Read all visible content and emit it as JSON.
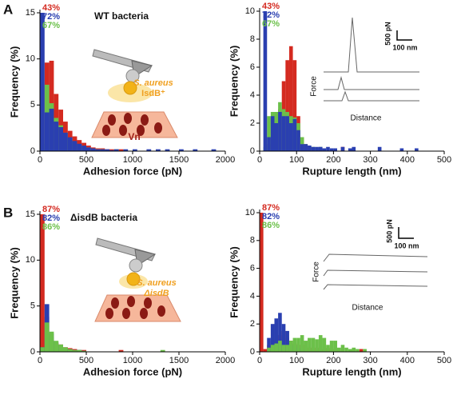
{
  "chart_data": [
    {
      "type": "histogram",
      "panel": "A",
      "title": "WT bacteria",
      "xlabel": "Adhesion force (pN)",
      "ylabel": "Frequency (%)",
      "bins": [
        0,
        50,
        100,
        150,
        200,
        250,
        300,
        350,
        400,
        450,
        500,
        550,
        600,
        650,
        700,
        750,
        800,
        850,
        900,
        950,
        1000,
        1050,
        1100,
        1150,
        1200,
        1250,
        1300,
        1350,
        1400,
        1450,
        1500,
        1550,
        1600,
        1650,
        1700,
        1750,
        1800,
        1850,
        1900,
        1950,
        2000
      ],
      "series": [
        {
          "name": "43%",
          "color": "#d42a20",
          "values": [
            0.3,
            9.6,
            9.8,
            6.2,
            4.5,
            3.2,
            2.2,
            1.6,
            1.2,
            0.9,
            0.6,
            0.4,
            0.3,
            0.3,
            0.2,
            0.2,
            0,
            0.2,
            0,
            0,
            0,
            0,
            0,
            0,
            0,
            0,
            0,
            0,
            0,
            0,
            0,
            0,
            0,
            0,
            0,
            0,
            0,
            0,
            0,
            0
          ]
        },
        {
          "name": "67%",
          "color": "#6cc04a",
          "values": [
            0.8,
            7.2,
            5.2,
            3.6,
            2.8,
            2,
            1.4,
            1,
            0.7,
            0.5,
            0.4,
            0.3,
            0.2,
            0.2,
            0.1,
            0,
            0.2,
            0,
            0,
            0,
            0,
            0,
            0,
            0,
            0,
            0,
            0,
            0,
            0,
            0,
            0,
            0,
            0,
            0,
            0,
            0,
            0,
            0,
            0,
            0
          ]
        },
        {
          "name": "72%",
          "color": "#2a3fb0",
          "values": [
            15,
            4.2,
            4.6,
            3.2,
            2.6,
            2,
            1.5,
            1.1,
            0.8,
            0.6,
            0.4,
            0.3,
            0.2,
            0.2,
            0.2,
            0.1,
            0.2,
            0,
            0.2,
            0,
            0.2,
            0,
            0,
            0.2,
            0,
            0.2,
            0,
            0.2,
            0,
            0,
            0.2,
            0,
            0,
            0.2,
            0,
            0,
            0,
            0.2,
            0,
            0
          ]
        }
      ],
      "legend_order": [
        0,
        2,
        1
      ],
      "xlim": [
        0,
        2000
      ],
      "xticks": [
        0,
        500,
        1000,
        1500,
        2000
      ],
      "ylim": [
        0,
        15
      ],
      "yticks": [
        0,
        5,
        10,
        15
      ],
      "annotations": [
        "S. aureus",
        "IsdB⁺",
        "Vn"
      ]
    },
    {
      "type": "histogram",
      "xlabel": "Rupture length (nm)",
      "ylabel": "Frequency (%)",
      "bins": [
        0,
        10,
        20,
        30,
        40,
        50,
        60,
        70,
        80,
        90,
        100,
        110,
        120,
        130,
        140,
        150,
        160,
        170,
        180,
        190,
        200,
        210,
        220,
        230,
        240,
        250,
        260,
        270,
        280,
        290,
        300,
        310,
        320,
        330,
        340,
        350,
        360,
        370,
        380,
        390,
        400,
        410,
        420,
        430,
        440,
        450
      ],
      "series": [
        {
          "name": "43%",
          "color": "#d42a20",
          "values": [
            0,
            0,
            0.5,
            1,
            2,
            3,
            5,
            6.5,
            7.5,
            6.5,
            2.5,
            1,
            0.5,
            0.3,
            0,
            0,
            0,
            0,
            0,
            0,
            0,
            0,
            0.3,
            0,
            0,
            0,
            0,
            0,
            0,
            0,
            0,
            0,
            0,
            0,
            0,
            0,
            0,
            0,
            0,
            0,
            0,
            0,
            0,
            0,
            0
          ]
        },
        {
          "name": "67%",
          "color": "#6cc04a",
          "values": [
            0,
            0.3,
            2.5,
            2.8,
            2.8,
            3.5,
            3,
            2.8,
            2.5,
            2.4,
            2,
            1,
            0.5,
            0.3,
            0.3,
            0.2,
            0.3,
            0,
            0,
            0,
            0,
            0,
            0,
            0,
            0,
            0,
            0,
            0,
            0,
            0,
            0,
            0,
            0,
            0,
            0,
            0,
            0,
            0,
            0,
            0,
            0,
            0,
            0,
            0,
            0
          ]
        },
        {
          "name": "72%",
          "color": "#2a3fb0",
          "values": [
            0,
            10,
            1,
            2.5,
            2,
            2.8,
            2.5,
            2.5,
            2,
            2.3,
            1.5,
            0.5,
            0.5,
            0.4,
            0.3,
            0.3,
            0.3,
            0.2,
            0.3,
            0.2,
            0.2,
            0,
            0.3,
            0,
            0.2,
            0.3,
            0,
            0,
            0,
            0,
            0,
            0,
            0.3,
            0,
            0,
            0,
            0,
            0,
            0.2,
            0,
            0,
            0,
            0.2,
            0,
            0
          ]
        }
      ],
      "legend_order": [
        0,
        2,
        1
      ],
      "xlim": [
        0,
        500
      ],
      "xticks": [
        0,
        100,
        200,
        300,
        400,
        500
      ],
      "ylim": [
        0,
        10
      ],
      "yticks": [
        0,
        2,
        4,
        6,
        8,
        10
      ],
      "annotations": [
        "500 pN",
        "100 nm",
        "Force",
        "Distance"
      ]
    },
    {
      "type": "histogram",
      "panel": "B",
      "title": "ΔisdB bacteria",
      "xlabel": "Adhesion force (pN)",
      "ylabel": "Frequency (%)",
      "bins": [
        0,
        50,
        100,
        150,
        200,
        250,
        300,
        350,
        400,
        450,
        500,
        550,
        600,
        650,
        700,
        750,
        800,
        850,
        900,
        950,
        1000,
        1050,
        1100,
        1150,
        1200,
        1250,
        1300,
        1350,
        1400,
        1450,
        1500,
        1550,
        1600,
        1650,
        1700,
        1750,
        1800,
        1850,
        1900,
        1950,
        2000
      ],
      "series": [
        {
          "name": "87%",
          "color": "#d42a20",
          "values": [
            15,
            3.8,
            1.6,
            1,
            0.8,
            0.5,
            0.4,
            0.3,
            0.2,
            0.2,
            0,
            0,
            0,
            0,
            0,
            0,
            0,
            0.2,
            0,
            0,
            0,
            0,
            0,
            0,
            0,
            0,
            0,
            0,
            0,
            0,
            0,
            0,
            0,
            0,
            0,
            0,
            0,
            0,
            0,
            0
          ]
        },
        {
          "name": "82%",
          "color": "#2a3fb0",
          "values": [
            0.5,
            5.2,
            2,
            1,
            0.6,
            0.4,
            0.3,
            0.2,
            0.2,
            0.1,
            0,
            0,
            0,
            0,
            0,
            0,
            0,
            0,
            0,
            0,
            0,
            0,
            0,
            0,
            0,
            0,
            0,
            0,
            0,
            0,
            0,
            0,
            0,
            0,
            0,
            0,
            0,
            0,
            0,
            0
          ]
        },
        {
          "name": "86%",
          "color": "#6cc04a",
          "values": [
            0.5,
            3.2,
            2.2,
            1.2,
            0.8,
            0.5,
            0.3,
            0.2,
            0.2,
            0.1,
            0,
            0,
            0,
            0,
            0,
            0,
            0,
            0,
            0,
            0,
            0,
            0,
            0,
            0,
            0,
            0,
            0.2,
            0,
            0,
            0,
            0,
            0,
            0,
            0,
            0,
            0,
            0,
            0,
            0,
            0
          ]
        }
      ],
      "legend_order": [
        0,
        1,
        2
      ],
      "xlim": [
        0,
        2000
      ],
      "xticks": [
        0,
        500,
        1000,
        1500,
        2000
      ],
      "ylim": [
        0,
        15
      ],
      "yticks": [
        0,
        5,
        10,
        15
      ],
      "annotations": [
        "S. aureus",
        "ΔisdB"
      ]
    },
    {
      "type": "histogram",
      "xlabel": "Rupture length (nm)",
      "ylabel": "Frequency (%)",
      "bins": [
        0,
        10,
        20,
        30,
        40,
        50,
        60,
        70,
        80,
        90,
        100,
        110,
        120,
        130,
        140,
        150,
        160,
        170,
        180,
        190,
        200,
        210,
        220,
        230,
        240,
        250,
        260,
        270,
        280,
        290,
        300,
        310,
        320,
        330,
        340,
        350,
        360,
        370,
        380,
        390,
        400,
        410,
        420,
        430,
        440,
        450
      ],
      "series": [
        {
          "name": "87%",
          "color": "#d42a20",
          "values": [
            10,
            0.2,
            0.5,
            0.8,
            1,
            1.2,
            1.5,
            1,
            0.8,
            0.6,
            0.5,
            0.5,
            0.4,
            0.3,
            0.3,
            0.3,
            0.2,
            0.2,
            0.3,
            0.2,
            0,
            0.2,
            0,
            0,
            0,
            0,
            0,
            0.2,
            0,
            0,
            0,
            0,
            0,
            0,
            0,
            0,
            0,
            0,
            0,
            0,
            0,
            0,
            0,
            0,
            0
          ]
        },
        {
          "name": "82%",
          "color": "#2a3fb0",
          "values": [
            0,
            0,
            1,
            2,
            2.4,
            2.8,
            2,
            1.5,
            0.5,
            0.5,
            0.3,
            0.2,
            0,
            0,
            0,
            0,
            0,
            0,
            0,
            0,
            0,
            0,
            0,
            0,
            0,
            0,
            0,
            0,
            0,
            0,
            0,
            0,
            0,
            0,
            0,
            0,
            0,
            0,
            0,
            0,
            0,
            0,
            0,
            0,
            0
          ]
        },
        {
          "name": "86%",
          "color": "#6cc04a",
          "values": [
            0,
            0,
            0.3,
            0.5,
            0.6,
            0.8,
            0.5,
            0.5,
            0.8,
            1,
            1,
            1.2,
            0.8,
            1,
            1,
            0.9,
            1.2,
            1,
            0.5,
            0.8,
            0.8,
            0.3,
            0.5,
            0.3,
            0.2,
            0.3,
            0.2,
            0,
            0.2,
            0,
            0,
            0,
            0,
            0,
            0,
            0,
            0,
            0,
            0,
            0,
            0,
            0,
            0,
            0,
            0
          ]
        }
      ],
      "legend_order": [
        0,
        1,
        2
      ],
      "xlim": [
        0,
        500
      ],
      "xticks": [
        0,
        100,
        200,
        300,
        400,
        500
      ],
      "ylim": [
        0,
        10
      ],
      "yticks": [
        0,
        2,
        4,
        6,
        8,
        10
      ],
      "annotations": [
        "500 pN",
        "100 nm",
        "Force",
        "Distance"
      ]
    }
  ]
}
